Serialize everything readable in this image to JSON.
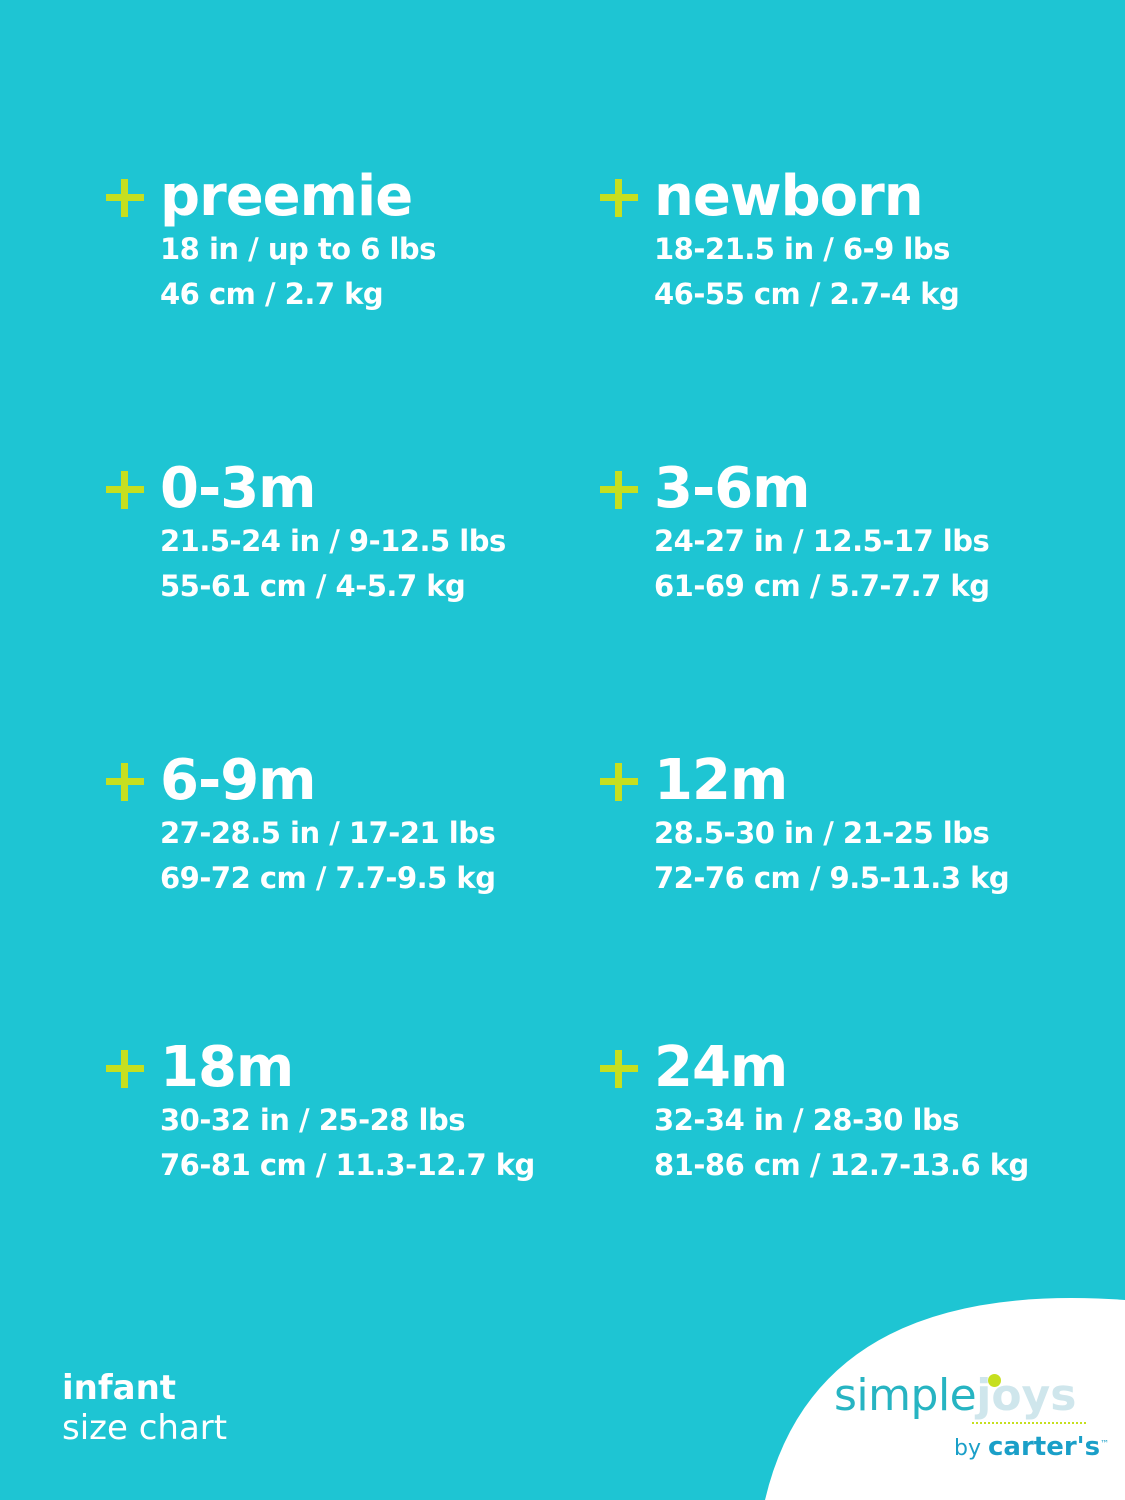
{
  "colors": {
    "background": "#1ec5d3",
    "plus": "#c6df1f",
    "logo_teal": "#27b4c2",
    "logo_blue": "#1a9fc8"
  },
  "sizes": [
    {
      "name": "preemie",
      "imperial": "18 in / up to 6 lbs",
      "metric": "46 cm / 2.7 kg"
    },
    {
      "name": "newborn",
      "imperial": "18-21.5 in / 6-9 lbs",
      "metric": "46-55 cm / 2.7-4 kg"
    },
    {
      "name": "0-3m",
      "imperial": "21.5-24 in / 9-12.5 lbs",
      "metric": "55-61 cm / 4-5.7 kg"
    },
    {
      "name": "3-6m",
      "imperial": "24-27 in / 12.5-17 lbs",
      "metric": "61-69 cm / 5.7-7.7 kg"
    },
    {
      "name": "6-9m",
      "imperial": "27-28.5 in / 17-21 lbs",
      "metric": "69-72 cm / 7.7-9.5 kg"
    },
    {
      "name": "12m",
      "imperial": "28.5-30 in / 21-25 lbs",
      "metric": "72-76 cm / 9.5-11.3 kg"
    },
    {
      "name": "18m",
      "imperial": "30-32 in / 25-28 lbs",
      "metric": "76-81 cm / 11.3-12.7 kg"
    },
    {
      "name": "24m",
      "imperial": "32-34 in / 28-30 lbs",
      "metric": "81-86 cm / 12.7-13.6 kg"
    }
  ],
  "footer": {
    "line1": "infant",
    "line2": "size chart"
  },
  "logo": {
    "simple": "simple",
    "joys": "joys",
    "by": "by",
    "brand": "carter's",
    "tm": "™"
  }
}
